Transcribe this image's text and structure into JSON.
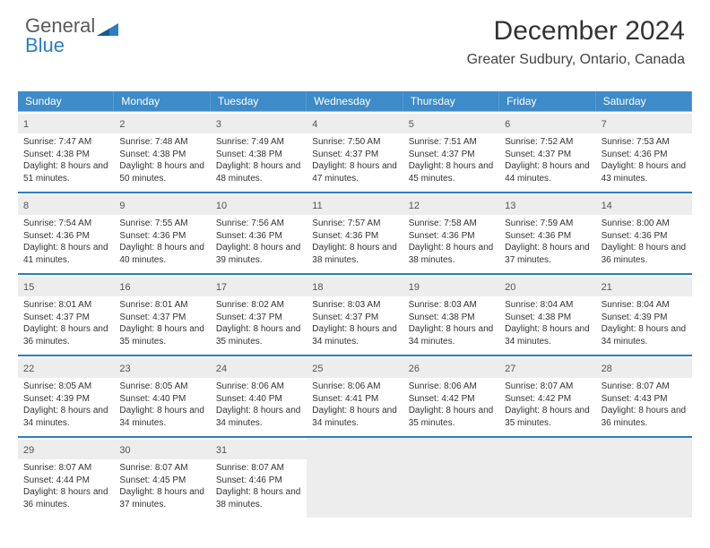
{
  "logo": {
    "word1": "General",
    "word2": "Blue"
  },
  "title": "December 2024",
  "location": "Greater Sudbury, Ontario, Canada",
  "colors": {
    "header_bg": "#3d8bc8",
    "accent": "#2b7ec2",
    "daynum_bg": "#ededed",
    "border": "#b8b8b8"
  },
  "day_labels": [
    "Sunday",
    "Monday",
    "Tuesday",
    "Wednesday",
    "Thursday",
    "Friday",
    "Saturday"
  ],
  "days": [
    {
      "n": "1",
      "sunrise": "Sunrise: 7:47 AM",
      "sunset": "Sunset: 4:38 PM",
      "daylight": "Daylight: 8 hours and 51 minutes."
    },
    {
      "n": "2",
      "sunrise": "Sunrise: 7:48 AM",
      "sunset": "Sunset: 4:38 PM",
      "daylight": "Daylight: 8 hours and 50 minutes."
    },
    {
      "n": "3",
      "sunrise": "Sunrise: 7:49 AM",
      "sunset": "Sunset: 4:38 PM",
      "daylight": "Daylight: 8 hours and 48 minutes."
    },
    {
      "n": "4",
      "sunrise": "Sunrise: 7:50 AM",
      "sunset": "Sunset: 4:37 PM",
      "daylight": "Daylight: 8 hours and 47 minutes."
    },
    {
      "n": "5",
      "sunrise": "Sunrise: 7:51 AM",
      "sunset": "Sunset: 4:37 PM",
      "daylight": "Daylight: 8 hours and 45 minutes."
    },
    {
      "n": "6",
      "sunrise": "Sunrise: 7:52 AM",
      "sunset": "Sunset: 4:37 PM",
      "daylight": "Daylight: 8 hours and 44 minutes."
    },
    {
      "n": "7",
      "sunrise": "Sunrise: 7:53 AM",
      "sunset": "Sunset: 4:36 PM",
      "daylight": "Daylight: 8 hours and 43 minutes."
    },
    {
      "n": "8",
      "sunrise": "Sunrise: 7:54 AM",
      "sunset": "Sunset: 4:36 PM",
      "daylight": "Daylight: 8 hours and 41 minutes."
    },
    {
      "n": "9",
      "sunrise": "Sunrise: 7:55 AM",
      "sunset": "Sunset: 4:36 PM",
      "daylight": "Daylight: 8 hours and 40 minutes."
    },
    {
      "n": "10",
      "sunrise": "Sunrise: 7:56 AM",
      "sunset": "Sunset: 4:36 PM",
      "daylight": "Daylight: 8 hours and 39 minutes."
    },
    {
      "n": "11",
      "sunrise": "Sunrise: 7:57 AM",
      "sunset": "Sunset: 4:36 PM",
      "daylight": "Daylight: 8 hours and 38 minutes."
    },
    {
      "n": "12",
      "sunrise": "Sunrise: 7:58 AM",
      "sunset": "Sunset: 4:36 PM",
      "daylight": "Daylight: 8 hours and 38 minutes."
    },
    {
      "n": "13",
      "sunrise": "Sunrise: 7:59 AM",
      "sunset": "Sunset: 4:36 PM",
      "daylight": "Daylight: 8 hours and 37 minutes."
    },
    {
      "n": "14",
      "sunrise": "Sunrise: 8:00 AM",
      "sunset": "Sunset: 4:36 PM",
      "daylight": "Daylight: 8 hours and 36 minutes."
    },
    {
      "n": "15",
      "sunrise": "Sunrise: 8:01 AM",
      "sunset": "Sunset: 4:37 PM",
      "daylight": "Daylight: 8 hours and 36 minutes."
    },
    {
      "n": "16",
      "sunrise": "Sunrise: 8:01 AM",
      "sunset": "Sunset: 4:37 PM",
      "daylight": "Daylight: 8 hours and 35 minutes."
    },
    {
      "n": "17",
      "sunrise": "Sunrise: 8:02 AM",
      "sunset": "Sunset: 4:37 PM",
      "daylight": "Daylight: 8 hours and 35 minutes."
    },
    {
      "n": "18",
      "sunrise": "Sunrise: 8:03 AM",
      "sunset": "Sunset: 4:37 PM",
      "daylight": "Daylight: 8 hours and 34 minutes."
    },
    {
      "n": "19",
      "sunrise": "Sunrise: 8:03 AM",
      "sunset": "Sunset: 4:38 PM",
      "daylight": "Daylight: 8 hours and 34 minutes."
    },
    {
      "n": "20",
      "sunrise": "Sunrise: 8:04 AM",
      "sunset": "Sunset: 4:38 PM",
      "daylight": "Daylight: 8 hours and 34 minutes."
    },
    {
      "n": "21",
      "sunrise": "Sunrise: 8:04 AM",
      "sunset": "Sunset: 4:39 PM",
      "daylight": "Daylight: 8 hours and 34 minutes."
    },
    {
      "n": "22",
      "sunrise": "Sunrise: 8:05 AM",
      "sunset": "Sunset: 4:39 PM",
      "daylight": "Daylight: 8 hours and 34 minutes."
    },
    {
      "n": "23",
      "sunrise": "Sunrise: 8:05 AM",
      "sunset": "Sunset: 4:40 PM",
      "daylight": "Daylight: 8 hours and 34 minutes."
    },
    {
      "n": "24",
      "sunrise": "Sunrise: 8:06 AM",
      "sunset": "Sunset: 4:40 PM",
      "daylight": "Daylight: 8 hours and 34 minutes."
    },
    {
      "n": "25",
      "sunrise": "Sunrise: 8:06 AM",
      "sunset": "Sunset: 4:41 PM",
      "daylight": "Daylight: 8 hours and 34 minutes."
    },
    {
      "n": "26",
      "sunrise": "Sunrise: 8:06 AM",
      "sunset": "Sunset: 4:42 PM",
      "daylight": "Daylight: 8 hours and 35 minutes."
    },
    {
      "n": "27",
      "sunrise": "Sunrise: 8:07 AM",
      "sunset": "Sunset: 4:42 PM",
      "daylight": "Daylight: 8 hours and 35 minutes."
    },
    {
      "n": "28",
      "sunrise": "Sunrise: 8:07 AM",
      "sunset": "Sunset: 4:43 PM",
      "daylight": "Daylight: 8 hours and 36 minutes."
    },
    {
      "n": "29",
      "sunrise": "Sunrise: 8:07 AM",
      "sunset": "Sunset: 4:44 PM",
      "daylight": "Daylight: 8 hours and 36 minutes."
    },
    {
      "n": "30",
      "sunrise": "Sunrise: 8:07 AM",
      "sunset": "Sunset: 4:45 PM",
      "daylight": "Daylight: 8 hours and 37 minutes."
    },
    {
      "n": "31",
      "sunrise": "Sunrise: 8:07 AM",
      "sunset": "Sunset: 4:46 PM",
      "daylight": "Daylight: 8 hours and 38 minutes."
    }
  ]
}
